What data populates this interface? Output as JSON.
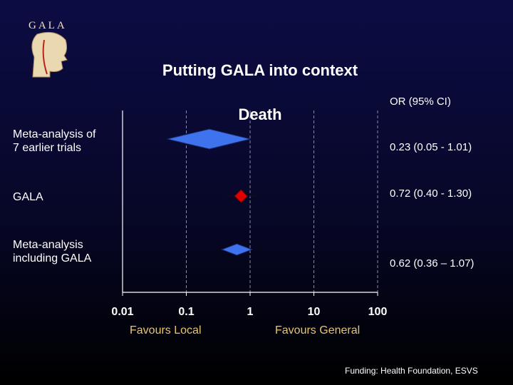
{
  "logo": "GALA",
  "chart_data": {
    "type": "forest",
    "title": [
      "Putting GALA into context",
      "Death"
    ],
    "column_header": "OR (95% CI)",
    "categories": [
      "Meta-analysis of\n7 earlier trials",
      "GALA",
      "Meta-analysis\nincluding GALA"
    ],
    "values": [
      0.23,
      0.72,
      0.62
    ],
    "ci_low": [
      0.05,
      0.4,
      0.36
    ],
    "ci_high": [
      1.01,
      1.3,
      1.07
    ],
    "value_labels": [
      "0.23 (0.05 - 1.01)",
      "0.72 (0.40 - 1.30)",
      "0.62 (0.36 – 1.07)"
    ],
    "markers": [
      "diamond",
      "point",
      "diamond"
    ],
    "colors": [
      "#3f73ee",
      "#e00000",
      "#3f73ee"
    ],
    "log_x": true,
    "xlim": [
      0.01,
      100
    ],
    "xticks": [
      {
        "value": 0.01,
        "label": "0.01"
      },
      0.1,
      1,
      10,
      100
    ],
    "grid": true,
    "x_annotations": [
      "Favours Local",
      "Favours General"
    ],
    "footnote": "Funding: Health Foundation, ESVS"
  }
}
